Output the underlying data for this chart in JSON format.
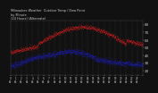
{
  "title": "Milwaukee Weather  Outdoor Temp / Dew Point\nby Minute\n(24 Hours) (Alternate)",
  "bg_color": "#111111",
  "text_color": "#cccccc",
  "grid_color": "#444444",
  "temp_color": "#ff2222",
  "dew_color": "#2222ff",
  "ylim": [
    15,
    85
  ],
  "yticks": [
    20,
    30,
    40,
    50,
    60,
    70,
    80
  ],
  "n_points": 1440,
  "x_hour_labels": [
    "0:00",
    "1:00",
    "2:00",
    "3:00",
    "4:00",
    "5:00",
    "6:00",
    "7:00",
    "8:00",
    "9:00",
    "10:00",
    "11:00",
    "12:00",
    "13:00",
    "14:00",
    "15:00",
    "16:00",
    "17:00",
    "18:00",
    "19:00",
    "20:00",
    "21:00",
    "22:00",
    "23:00"
  ],
  "n_grid_lines": 24
}
